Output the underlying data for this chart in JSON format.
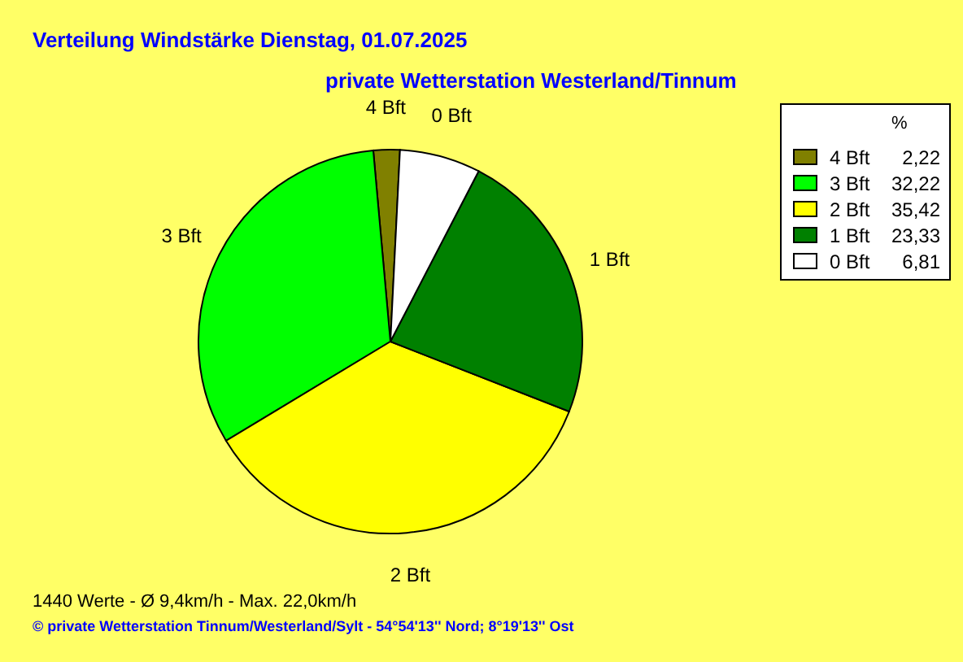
{
  "chart_data": {
    "type": "pie",
    "title": "Verteilung Windstärke  Dienstag, 01.07.2025",
    "subtitle": "private Wetterstation Westerland/Tinnum",
    "categories": [
      "4 Bft",
      "3 Bft",
      "2 Bft",
      "1 Bft",
      "0 Bft"
    ],
    "values": [
      2.22,
      32.22,
      35.42,
      23.33,
      6.81
    ],
    "value_labels": [
      "2,22",
      "32,22",
      "35,42",
      "23,33",
      "6,81"
    ],
    "colors": [
      "#808000",
      "#00ff00",
      "#ffff00",
      "#008000",
      "#ffffff"
    ],
    "legend_title": "%",
    "legend": "top right",
    "annotations": [
      "1440 Werte   -   Ø 9,4km/h  -  Max. 22,0km/h",
      "© private Wetterstation Tinnum/Westerland/Sylt   -   54°54'13'' Nord; 8°19'13'' Ost"
    ]
  }
}
